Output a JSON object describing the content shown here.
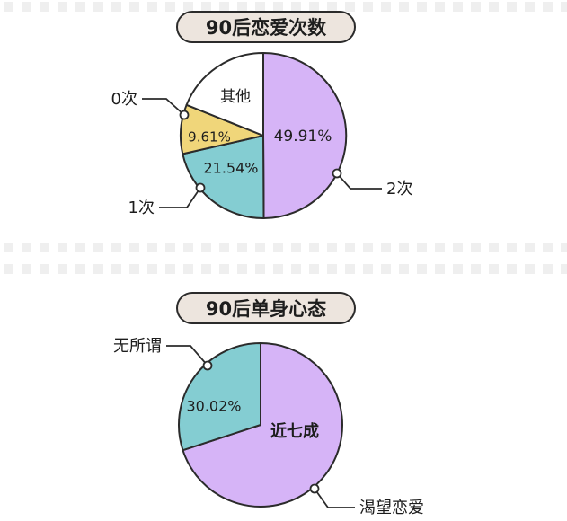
{
  "chart_data": [
    {
      "type": "pie",
      "title": "90后恋爱次数",
      "slices": [
        {
          "label": "2次",
          "value": 49.91,
          "value_text": "49.91%",
          "color": "#d6b4f7"
        },
        {
          "label": "1次",
          "value": 21.54,
          "value_text": "21.54%",
          "color": "#84cdd2"
        },
        {
          "label": "0次",
          "value": 9.61,
          "value_text": "9.61%",
          "color": "#f0d67a"
        },
        {
          "label": "其他",
          "value": 18.94,
          "value_text": "",
          "color": "#ffffff"
        }
      ]
    },
    {
      "type": "pie",
      "title": "90后单身心态",
      "slices": [
        {
          "label": "渴望恋爱",
          "value": 69.98,
          "value_text": "近七成",
          "color": "#d6b4f7"
        },
        {
          "label": "无所谓",
          "value": 30.02,
          "value_text": "30.02%",
          "color": "#84cdd2"
        }
      ]
    }
  ]
}
